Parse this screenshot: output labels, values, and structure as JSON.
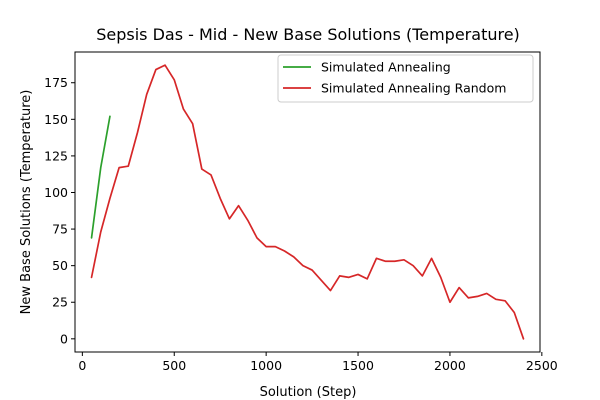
{
  "chart_data": {
    "type": "line",
    "title": "Sepsis Das - Mid - New Base Solutions (Temperature)",
    "xlabel": "Solution (Step)",
    "ylabel": "New Base Solutions (Temperature)",
    "xlim": [
      -40,
      2490
    ],
    "ylim": [
      -9,
      196
    ],
    "xticks": [
      0,
      500,
      1000,
      1500,
      2000,
      2500
    ],
    "yticks": [
      0,
      25,
      50,
      75,
      100,
      125,
      150,
      175
    ],
    "grid": false,
    "legend_position": "upper right",
    "series": [
      {
        "name": "Simulated Annealing",
        "color": "#2ca02c",
        "x": [
          50,
          100,
          150
        ],
        "y": [
          69,
          117,
          152
        ]
      },
      {
        "name": "Simulated Annealing Random",
        "color": "#d62728",
        "x": [
          50,
          100,
          150,
          200,
          250,
          300,
          350,
          400,
          450,
          500,
          550,
          600,
          650,
          700,
          750,
          800,
          850,
          900,
          950,
          1000,
          1050,
          1100,
          1150,
          1200,
          1250,
          1300,
          1350,
          1400,
          1450,
          1500,
          1550,
          1600,
          1650,
          1700,
          1750,
          1800,
          1850,
          1900,
          1950,
          2000,
          2050,
          2100,
          2150,
          2200,
          2250,
          2300,
          2350,
          2400
        ],
        "y": [
          42,
          73,
          96,
          117,
          118,
          141,
          167,
          184,
          187,
          177,
          157,
          147,
          116,
          112,
          96,
          82,
          91,
          81,
          69,
          63,
          63,
          60,
          56,
          50,
          47,
          40,
          33,
          43,
          42,
          44,
          41,
          55,
          53,
          53,
          54,
          50,
          43,
          55,
          42,
          25,
          35,
          28,
          29,
          31,
          27,
          26,
          18,
          0
        ]
      }
    ]
  }
}
